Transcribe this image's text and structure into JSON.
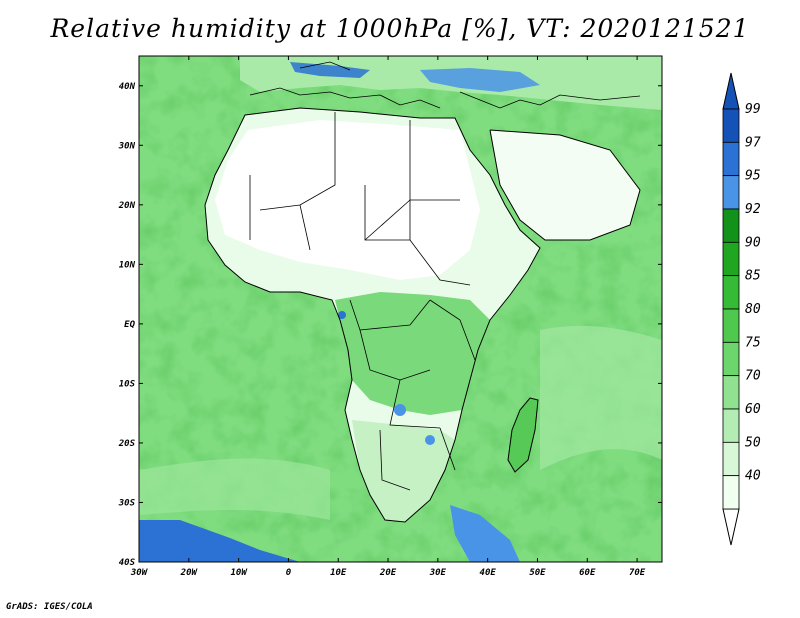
{
  "title": "Relative humidity at 1000hPa [%], VT: 2020121521",
  "credit": "GrADS: IGES/COLA",
  "map": {
    "lon_range": [
      -30,
      75
    ],
    "lat_range": [
      -40,
      45
    ],
    "lon_ticks": [
      {
        "value": -30,
        "label": "30W"
      },
      {
        "value": -20,
        "label": "20W"
      },
      {
        "value": -10,
        "label": "10W"
      },
      {
        "value": 0,
        "label": "0"
      },
      {
        "value": 10,
        "label": "10E"
      },
      {
        "value": 20,
        "label": "20E"
      },
      {
        "value": 30,
        "label": "30E"
      },
      {
        "value": 40,
        "label": "40E"
      },
      {
        "value": 50,
        "label": "50E"
      },
      {
        "value": 60,
        "label": "60E"
      },
      {
        "value": 70,
        "label": "70E"
      }
    ],
    "lat_ticks": [
      {
        "value": 40,
        "label": "40N"
      },
      {
        "value": 30,
        "label": "30N"
      },
      {
        "value": 20,
        "label": "20N"
      },
      {
        "value": 10,
        "label": "10N"
      },
      {
        "value": 0,
        "label": "EQ"
      },
      {
        "value": -10,
        "label": "10S"
      },
      {
        "value": -20,
        "label": "20S"
      },
      {
        "value": -30,
        "label": "30S"
      },
      {
        "value": -40,
        "label": "40S"
      }
    ]
  },
  "colorbar": {
    "levels": [
      40,
      50,
      60,
      70,
      75,
      80,
      85,
      90,
      92,
      95,
      97,
      99
    ],
    "colors": [
      "#f0fff0",
      "#d7f7d7",
      "#b4edb4",
      "#90e290",
      "#6cd66c",
      "#4ec94e",
      "#36bb36",
      "#21a621",
      "#13921b",
      "#4a94e8",
      "#2b72d4",
      "#1452b8"
    ],
    "under_color": "#ffffff",
    "over_color": "#1452b8"
  },
  "colors": {
    "ocean_base": "#7ada7a",
    "land_dry": "#ffffff",
    "border": "#000000"
  }
}
